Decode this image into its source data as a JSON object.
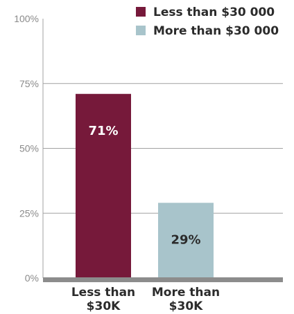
{
  "chart_data": {
    "type": "bar",
    "categories": [
      "Less than $30K",
      "More than $30K"
    ],
    "category_lines": [
      [
        "Less than",
        "$30K"
      ],
      [
        "More than",
        "$30K"
      ]
    ],
    "values": [
      71,
      29
    ],
    "data_labels": [
      "71%",
      "29%"
    ],
    "ylim": [
      0,
      100
    ],
    "yticks": [
      0,
      25,
      50,
      75,
      100
    ],
    "ytick_labels": [
      "0%",
      "25%",
      "50%",
      "75%",
      "100%"
    ],
    "grid": true,
    "legend_position": "top-right",
    "legend": [
      {
        "label": "Less than $30 000",
        "color": "#76193a"
      },
      {
        "label": "More than $30 000",
        "color": "#a8c4cb"
      }
    ],
    "colors": [
      "#76193a",
      "#a8c4cb"
    ],
    "label_colors": [
      "#ffffff",
      "#2b2b2b"
    ],
    "axis_color": "#8c8c8c",
    "grid_color": "#a0a0a0"
  }
}
